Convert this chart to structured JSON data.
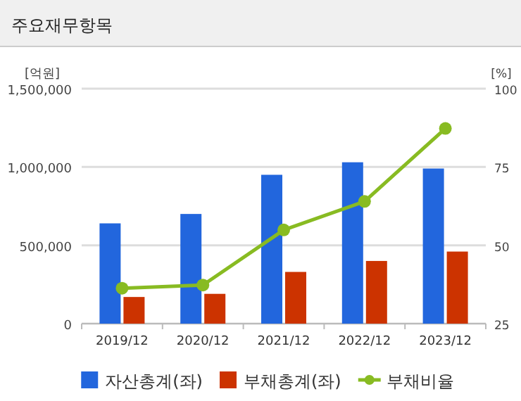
{
  "chart_data": {
    "type": "bar",
    "title": "주요재무항목",
    "ylabel": "[억원]",
    "y2label": "[%]",
    "categories": [
      "2019/12",
      "2020/12",
      "2021/12",
      "2022/12",
      "2023/12"
    ],
    "series": [
      {
        "name": "자산총계(좌)",
        "color": "#2266dd",
        "values": [
          640000,
          700000,
          950000,
          1030000,
          990000
        ]
      },
      {
        "name": "부채총계(좌)",
        "color": "#cc3300",
        "values": [
          170000,
          190000,
          330000,
          400000,
          460000
        ]
      },
      {
        "name": "부채비율",
        "type": "line",
        "axis": "y2",
        "color": "#88bb22",
        "marker": "circle",
        "values": [
          36.3,
          37.3,
          54.9,
          64,
          87.3
        ]
      }
    ],
    "ylim": [
      0,
      1500000
    ],
    "yticks": [
      {
        "value": 0,
        "label": "0"
      },
      {
        "value": 500000,
        "label": "500,000"
      },
      {
        "value": 1000000,
        "label": "1,000,000"
      },
      {
        "value": 1500000,
        "label": "1,500,000"
      }
    ],
    "y2lim": [
      25,
      100
    ],
    "y2ticks": [
      25,
      50,
      75,
      100
    ],
    "grid": "y",
    "legend": "bottom"
  }
}
